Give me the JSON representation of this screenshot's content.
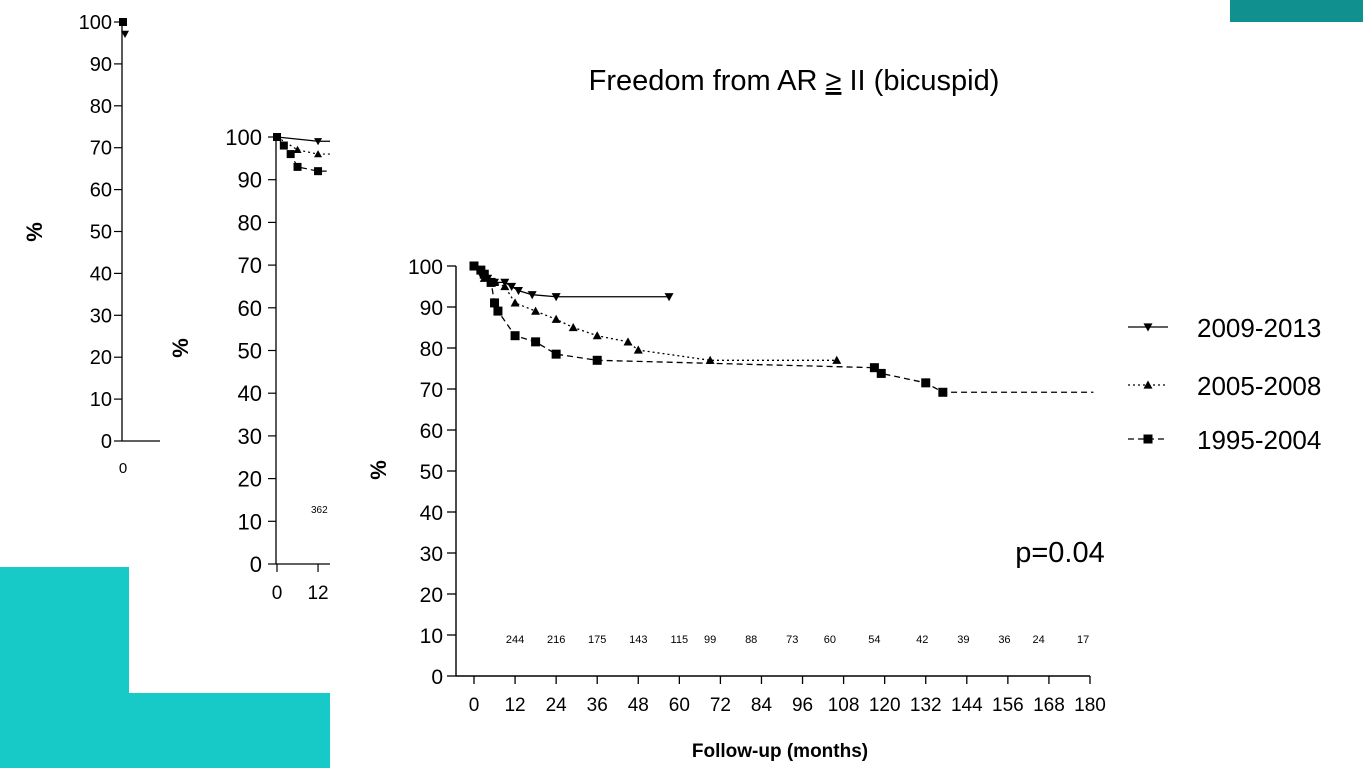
{
  "slide": {
    "accent_color": "#17c9c7",
    "accent_dark": "#119090"
  },
  "chart_data": [
    {
      "type": "line",
      "title": "",
      "ylabel": "%",
      "xlabel": "",
      "ylim": [
        0,
        100
      ],
      "yticks": [
        "0",
        "10",
        "20",
        "30",
        "40",
        "50",
        "60",
        "70",
        "80",
        "90",
        "100"
      ],
      "xticks": [
        "0"
      ],
      "note": "partially hidden background chart"
    },
    {
      "type": "line",
      "title": "",
      "ylabel": "%",
      "xlabel": "",
      "ylim": [
        0,
        100
      ],
      "yticks": [
        "0",
        "10",
        "20",
        "30",
        "40",
        "50",
        "60",
        "70",
        "80",
        "90",
        "100"
      ],
      "xticks": [
        "0",
        "12"
      ],
      "risk_fragment": "362",
      "series": [
        {
          "values": [
            [
              0,
              100
            ],
            [
              12,
              99
            ]
          ]
        },
        {
          "values": [
            [
              0,
              100
            ],
            [
              6,
              97
            ],
            [
              12,
              96
            ]
          ]
        },
        {
          "values": [
            [
              0,
              100
            ],
            [
              2,
              98
            ],
            [
              4,
              96
            ],
            [
              6,
              93
            ],
            [
              12,
              92
            ]
          ]
        }
      ]
    },
    {
      "type": "line",
      "title": "Freedom from AR ≥ II (bicuspid)",
      "title_prefix": "Freedom from AR ",
      "title_symbol": "≥",
      "title_suffix": " II (bicuspid)",
      "xlabel": "Follow-up (months)",
      "ylabel": "%",
      "xlim": [
        0,
        180
      ],
      "ylim": [
        0,
        100
      ],
      "xticks": [
        "0",
        "12",
        "24",
        "36",
        "48",
        "60",
        "72",
        "84",
        "96",
        "108",
        "120",
        "132",
        "144",
        "156",
        "168",
        "180"
      ],
      "yticks": [
        "0",
        "10",
        "20",
        "30",
        "40",
        "50",
        "60",
        "70",
        "80",
        "90",
        "100"
      ],
      "legend_position": "right",
      "annotation": "p=0.04",
      "numbers_at_risk": [
        {
          "x": 12,
          "label": "244"
        },
        {
          "x": 24,
          "label": "216"
        },
        {
          "x": 36,
          "label": "175"
        },
        {
          "x": 48,
          "label": "143"
        },
        {
          "x": 60,
          "label": "115"
        },
        {
          "x": 69,
          "label": "99"
        },
        {
          "x": 81,
          "label": "88"
        },
        {
          "x": 93,
          "label": "73"
        },
        {
          "x": 104,
          "label": "60"
        },
        {
          "x": 117,
          "label": "54"
        },
        {
          "x": 131,
          "label": "42"
        },
        {
          "x": 143,
          "label": "39"
        },
        {
          "x": 155,
          "label": "36"
        },
        {
          "x": 165,
          "label": "24"
        },
        {
          "x": 178,
          "label": "17"
        }
      ],
      "series": [
        {
          "name": "2009-2013",
          "line_style": "solid",
          "marker": "triangle-down",
          "values": [
            [
              0,
              100
            ],
            [
              2,
              98
            ],
            [
              4,
              97
            ],
            [
              6,
              96
            ],
            [
              9,
              96
            ],
            [
              11,
              95
            ],
            [
              13,
              94
            ],
            [
              17,
              93
            ],
            [
              24,
              92.5
            ],
            [
              57,
              92.5
            ]
          ]
        },
        {
          "name": "2005-2008",
          "line_style": "dotted",
          "marker": "triangle-up",
          "values": [
            [
              0,
              100
            ],
            [
              3,
              97
            ],
            [
              6,
              96
            ],
            [
              9,
              95
            ],
            [
              12,
              91
            ],
            [
              18,
              89
            ],
            [
              24,
              87
            ],
            [
              29,
              85
            ],
            [
              36,
              83
            ],
            [
              45,
              81.5
            ],
            [
              48,
              79.5
            ],
            [
              69,
              77
            ],
            [
              106,
              77
            ]
          ]
        },
        {
          "name": "1995-2004",
          "line_style": "dashed",
          "marker": "square",
          "values": [
            [
              0,
              100
            ],
            [
              2,
              99
            ],
            [
              3,
              98
            ],
            [
              5,
              96
            ],
            [
              6,
              91
            ],
            [
              7,
              89
            ],
            [
              12,
              83
            ],
            [
              18,
              81.5
            ],
            [
              24,
              78.5
            ],
            [
              36,
              77
            ],
            [
              117,
              75.2
            ],
            [
              119,
              73.8
            ],
            [
              132,
              71.5
            ],
            [
              137,
              69.2
            ],
            [
              181,
              69.2
            ]
          ]
        }
      ]
    }
  ]
}
